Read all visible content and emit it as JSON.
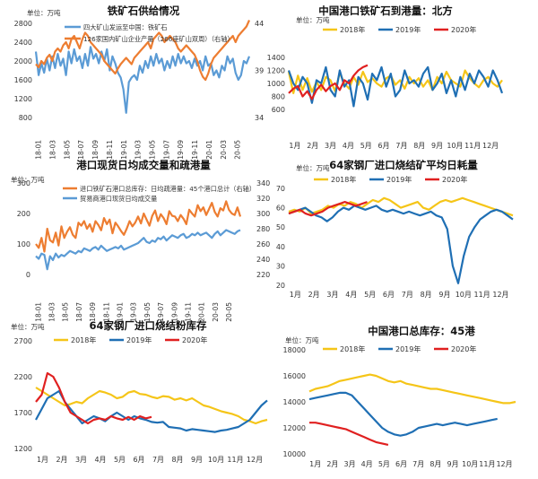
{
  "chart_data": [
    {
      "type": "line",
      "title": "铁矿石供给情况",
      "unit_left": "单位：万吨",
      "yticks": [
        "2800",
        "2400",
        "2000",
        "1600",
        "1200",
        "800"
      ],
      "y2ticks": [
        "44",
        "39",
        "34"
      ],
      "xticks": [
        "18-01",
        "18-03",
        "18-05",
        "18-07",
        "18-09",
        "18-11",
        "19-01",
        "19-03",
        "19-05",
        "19-07",
        "19-09",
        "19-11",
        "20-01",
        "20-03",
        "20-05"
      ],
      "ylim": [
        800,
        2800
      ],
      "y2lim": [
        29,
        44
      ],
      "series": [
        {
          "name": "四大矿山发运至中国：铁矿石",
          "color": "#5b9bd5",
          "axis": "left",
          "values": [
            2200,
            1700,
            1950,
            1750,
            2050,
            1800,
            2100,
            1850,
            2150,
            1900,
            2050,
            1700,
            2200,
            1950,
            2250,
            2000,
            2100,
            1850,
            2150,
            1900,
            2300,
            2050,
            2150,
            1950,
            2200,
            2000,
            2250,
            1800,
            2100,
            1950,
            1750,
            1650,
            1400,
            900,
            1550,
            1650,
            1700,
            1600,
            1900,
            1750,
            2000,
            1850,
            2100,
            1900,
            2150,
            1950,
            2050,
            1800,
            2000,
            1850,
            2100,
            1900,
            2150,
            1950,
            2100,
            1950,
            2000,
            1850,
            2050,
            1900,
            2000,
            1800,
            2100,
            1900,
            1950,
            1700,
            1800,
            1650,
            1900,
            1800,
            2100,
            1950,
            2050,
            1750,
            1600,
            1700,
            2000,
            1950,
            2100
          ]
        },
        {
          "name": "126家国内矿山企业产量（266座矿山双周）（右轴）",
          "color": "#ed7d31",
          "axis": "right",
          "values": [
            37.5,
            37,
            38,
            37.5,
            38.5,
            39,
            38,
            39.5,
            40,
            39.5,
            40.5,
            41,
            40,
            41.5,
            42,
            41,
            40,
            41.5,
            42.5,
            42,
            41,
            40.5,
            40,
            39.5,
            39,
            38,
            37.5,
            37,
            36.5,
            36,
            36.8,
            37.5,
            38,
            38.5,
            38,
            37.5,
            38.5,
            39,
            39.5,
            40,
            40.5,
            41,
            40,
            41.5,
            42,
            42.5,
            42,
            41,
            41.5,
            42,
            41.5,
            41,
            40,
            39.5,
            40,
            40.5,
            40,
            39.5,
            39,
            38,
            36.5,
            35.5,
            35,
            36,
            37.5,
            38.5,
            39,
            39.5,
            40,
            40.5,
            41,
            41.5,
            42,
            41,
            42,
            42.5,
            43,
            43.5,
            44.5
          ]
        }
      ]
    },
    {
      "type": "line",
      "title": "中国港口铁矿石到港量：北方",
      "unit_left": "单位：万吨",
      "yticks": [
        "1400",
        "1200",
        "1000",
        "800",
        "600"
      ],
      "xticks": [
        "1月",
        "2月",
        "3月",
        "4月",
        "5月",
        "6月",
        "7月",
        "8月",
        "9月",
        "10月",
        "11月",
        "12月"
      ],
      "ylim": [
        600,
        1400
      ],
      "series": [
        {
          "name": "2018年",
          "color": "#f5c518",
          "values": [
            1180,
            850,
            1120,
            900,
            1080,
            870,
            1020,
            900,
            1100,
            1050,
            880,
            1160,
            1000,
            920,
            1100,
            980,
            1180,
            1020,
            1080,
            1000,
            950,
            1080,
            1120,
            980,
            1050,
            920,
            1100,
            1000,
            1080,
            950,
            1050,
            900,
            1100,
            1000,
            1180,
            1050,
            1000,
            950,
            1200,
            1080,
            1000,
            940,
            1050,
            1100,
            1000,
            950,
            1050
          ]
        },
        {
          "name": "2019年",
          "color": "#1f6fb4",
          "values": [
            1200,
            1000,
            900,
            1100,
            1000,
            700,
            1050,
            1000,
            1250,
            900,
            800,
            1200,
            950,
            1050,
            650,
            1100,
            1000,
            750,
            1150,
            1050,
            1250,
            950,
            1150,
            800,
            900,
            1200,
            1000,
            1050,
            950,
            1150,
            1250,
            900,
            1000,
            1150,
            850,
            1050,
            800,
            1100,
            900,
            1150,
            1000,
            1200,
            1100,
            950,
            1200,
            1050,
            850
          ]
        },
        {
          "name": "2020年",
          "color": "#e02020",
          "values": [
            850,
            920,
            960,
            800,
            880,
            760,
            900,
            980,
            880,
            960,
            1000,
            900,
            1050,
            1000,
            1120,
            1200,
            1250,
            1280
          ]
        }
      ]
    },
    {
      "type": "line",
      "title": "港口现货日均成交量和疏港量",
      "unit_left": "单位：万吨",
      "yticks": [
        "300",
        "200",
        "100",
        "0"
      ],
      "y2ticks": [
        "340",
        "320",
        "300",
        "280",
        "260",
        "240",
        "220"
      ],
      "xticks": [
        "18-01",
        "18-03",
        "18-05",
        "18-07",
        "18-09",
        "18-11",
        "19-01",
        "19-03",
        "19-05",
        "19-07",
        "19-09",
        "19-11",
        "20-01",
        "20-03",
        "20-05"
      ],
      "ylim": [
        0,
        350
      ],
      "y2lim": [
        220,
        340
      ],
      "series": [
        {
          "name": "贸易商港口现货日均成交量",
          "color": "#5b9bd5",
          "axis": "left",
          "values": [
            70,
            60,
            80,
            75,
            20,
            70,
            55,
            80,
            65,
            75,
            70,
            80,
            90,
            85,
            80,
            90,
            85,
            100,
            95,
            90,
            100,
            105,
            95,
            110,
            100,
            90,
            95,
            100,
            105,
            100,
            110,
            95,
            100,
            105,
            110,
            115,
            120,
            130,
            140,
            125,
            120,
            130,
            125,
            140,
            135,
            145,
            130,
            140,
            150,
            145,
            140,
            150,
            155,
            140,
            145,
            155,
            150,
            160,
            150,
            155,
            160,
            150,
            140,
            155,
            165,
            150,
            160,
            170,
            165,
            160,
            155,
            165,
            170
          ]
        },
        {
          "name": "进口铁矿石港口总库存：日均疏港量：45个港口总计（右轴）",
          "color": "#ed7d31",
          "axis": "right",
          "values": [
            260,
            255,
            268,
            250,
            280,
            265,
            262,
            275,
            258,
            283,
            268,
            276,
            282,
            272,
            268,
            288,
            284,
            290,
            280,
            286,
            276,
            290,
            285,
            278,
            294,
            286,
            292,
            274,
            288,
            283,
            277,
            272,
            280,
            290,
            283,
            288,
            296,
            287,
            300,
            292,
            284,
            297,
            304,
            290,
            299,
            294,
            286,
            303,
            297,
            296,
            290,
            298,
            293,
            286,
            305,
            300,
            296,
            311,
            303,
            308,
            298,
            306,
            314,
            302,
            296,
            307,
            304,
            316,
            305,
            300,
            298,
            308,
            296
          ]
        }
      ]
    },
    {
      "type": "line",
      "title": "64家钢厂进口烧结矿平均日耗量",
      "unit_left": "单位：万吨",
      "yticks": [
        "70",
        "60",
        "50",
        "40",
        "30",
        "20"
      ],
      "xticks": [
        "1月",
        "2月",
        "3月",
        "4月",
        "5月",
        "6月",
        "7月",
        "8月",
        "9月",
        "10月",
        "11月",
        "12月"
      ],
      "ylim": [
        20,
        70
      ],
      "series": [
        {
          "name": "2018年",
          "color": "#f5c518",
          "values": [
            58,
            59,
            58,
            60,
            57,
            58,
            59,
            61,
            60,
            62,
            61,
            63,
            62,
            60,
            62,
            64,
            63,
            65,
            64,
            62,
            60,
            61,
            62,
            63,
            60,
            59,
            61,
            63,
            64,
            63,
            64,
            65,
            64,
            63,
            62,
            61,
            60,
            59,
            58,
            57,
            56
          ]
        },
        {
          "name": "2019年",
          "color": "#1f6fb4",
          "values": [
            57,
            58,
            59,
            60,
            58,
            56,
            55,
            53,
            55,
            58,
            60,
            59,
            61,
            60,
            59,
            60,
            61,
            59,
            58,
            59,
            58,
            57,
            58,
            57,
            56,
            57,
            58,
            56,
            55,
            49,
            30,
            21,
            35,
            45,
            50,
            54,
            56,
            58,
            59,
            58,
            56,
            54
          ]
        },
        {
          "name": "2020年",
          "color": "#e02020",
          "values": [
            57,
            58,
            59,
            57,
            56,
            57,
            58,
            60,
            61,
            62,
            63,
            62,
            61,
            62,
            63
          ]
        }
      ]
    },
    {
      "type": "line",
      "title": "64家钢厂进口烧结粉库存",
      "unit_left": "单位：万吨",
      "yticks": [
        "2700",
        "2200",
        "1700",
        "1200"
      ],
      "xticks": [
        "1月",
        "2月",
        "3月",
        "4月",
        "5月",
        "6月",
        "7月",
        "8月",
        "9月",
        "10月",
        "11月",
        "12月"
      ],
      "ylim": [
        1200,
        2700
      ],
      "series": [
        {
          "name": "2018年",
          "color": "#f5c518",
          "values": [
            2050,
            2000,
            1950,
            1900,
            1850,
            1800,
            1820,
            1850,
            1830,
            1900,
            1950,
            2000,
            1980,
            1950,
            1900,
            1920,
            1980,
            2000,
            1960,
            1950,
            1920,
            1900,
            1930,
            1920,
            1880,
            1900,
            1870,
            1900,
            1850,
            1800,
            1780,
            1750,
            1720,
            1700,
            1680,
            1650,
            1600,
            1580,
            1550,
            1580,
            1600
          ]
        },
        {
          "name": "2019年",
          "color": "#1f6fb4",
          "values": [
            1600,
            1750,
            1900,
            1950,
            2000,
            1850,
            1750,
            1650,
            1550,
            1600,
            1650,
            1620,
            1580,
            1650,
            1700,
            1650,
            1600,
            1650,
            1620,
            1600,
            1570,
            1560,
            1570,
            1500,
            1490,
            1480,
            1450,
            1470,
            1460,
            1450,
            1440,
            1430,
            1450,
            1460,
            1480,
            1500,
            1550,
            1600,
            1700,
            1800,
            1870
          ]
        },
        {
          "name": "2020年",
          "color": "#e02020",
          "values": [
            1850,
            1950,
            2250,
            2200,
            2050,
            1850,
            1700,
            1650,
            1600,
            1550,
            1600,
            1620,
            1600,
            1650,
            1620,
            1600,
            1640,
            1600,
            1650,
            1620,
            1640
          ]
        }
      ]
    },
    {
      "type": "line",
      "title": "中国港口总库存：45港",
      "unit_left": "单位：万吨",
      "yticks": [
        "18000",
        "16000",
        "14000",
        "12000",
        "10000"
      ],
      "xticks": [
        "1月",
        "2月",
        "3月",
        "4月",
        "5月",
        "6月",
        "7月",
        "8月",
        "9月",
        "10月",
        "11月",
        "12月"
      ],
      "ylim": [
        10000,
        18000
      ],
      "series": [
        {
          "name": "2018年",
          "color": "#f5c518",
          "values": [
            14800,
            15000,
            15100,
            15200,
            15400,
            15600,
            15700,
            15800,
            15900,
            16000,
            16100,
            16000,
            15800,
            15600,
            15500,
            15600,
            15400,
            15300,
            15200,
            15100,
            15000,
            15000,
            14900,
            14800,
            14700,
            14600,
            14500,
            14400,
            14300,
            14200,
            14100,
            14000,
            13900,
            13900,
            14000
          ]
        },
        {
          "name": "2019年",
          "color": "#1f6fb4",
          "values": [
            14200,
            14300,
            14400,
            14500,
            14600,
            14700,
            14700,
            14500,
            14000,
            13500,
            13000,
            12500,
            12000,
            11700,
            11500,
            11400,
            11500,
            11700,
            12000,
            12100,
            12200,
            12300,
            12200,
            12300,
            12400,
            12300,
            12200,
            12300,
            12400,
            12500,
            12600,
            12700
          ]
        },
        {
          "name": "2020年",
          "color": "#e02020",
          "values": [
            12400,
            12400,
            12300,
            12200,
            12100,
            12000,
            11900,
            11700,
            11500,
            11300,
            11100,
            10900,
            10800,
            10700
          ]
        }
      ]
    }
  ]
}
